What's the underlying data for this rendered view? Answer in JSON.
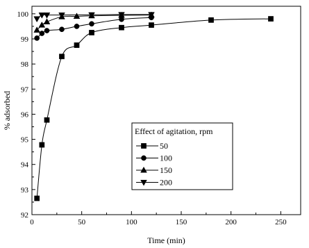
{
  "chart_data": {
    "type": "line",
    "title": "",
    "xlabel": "Time (min)",
    "ylabel": "% adsorbed",
    "xlim": [
      0,
      270
    ],
    "ylim": [
      92,
      100.3
    ],
    "xticks": [
      "0",
      "50",
      "100",
      "150",
      "200",
      "250"
    ],
    "yticks": [
      "92",
      "93",
      "94",
      "95",
      "96",
      "97",
      "98",
      "99",
      "100"
    ],
    "grid": false,
    "legend": {
      "title": "Effect of agitation, rpm",
      "placement": "lower-right"
    },
    "series": [
      {
        "name": "50",
        "marker": "square",
        "x": [
          5,
          10,
          15,
          30,
          45,
          60,
          90,
          120,
          180,
          240
        ],
        "y": [
          92.65,
          94.78,
          95.77,
          98.3,
          98.75,
          99.25,
          99.45,
          99.55,
          99.75,
          99.8
        ]
      },
      {
        "name": "100",
        "marker": "circle",
        "x": [
          5,
          10,
          15,
          30,
          45,
          60,
          90,
          120
        ],
        "y": [
          99.03,
          99.22,
          99.33,
          99.38,
          99.5,
          99.6,
          99.78,
          99.85
        ]
      },
      {
        "name": "150",
        "marker": "triangle-up",
        "x": [
          5,
          10,
          15,
          30,
          45,
          60,
          90,
          120
        ],
        "y": [
          99.35,
          99.55,
          99.68,
          99.88,
          99.9,
          99.92,
          99.94,
          99.95
        ]
      },
      {
        "name": "200",
        "marker": "triangle-down",
        "x": [
          5,
          10,
          15,
          30,
          60,
          90,
          120
        ],
        "y": [
          99.8,
          99.95,
          99.95,
          99.95,
          99.96,
          99.97,
          99.97
        ]
      }
    ]
  }
}
